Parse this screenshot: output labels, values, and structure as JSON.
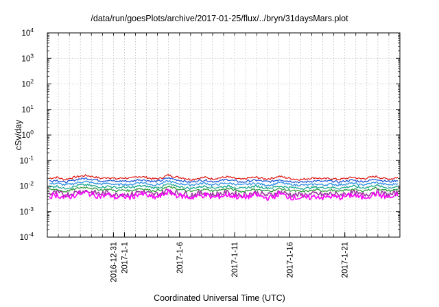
{
  "chart_data": {
    "type": "line",
    "title": "/data/run/goesPlots/archive/2017-01-25/flux/../bryn/31daysMars.plot",
    "xlabel": "Coordinated Universal Time (UTC)",
    "ylabel": "cSv/day",
    "yscale": "log",
    "ylim": [
      0.0001,
      10000
    ],
    "xlim": [
      "2016-12-25",
      "2017-01-26"
    ],
    "grid": true,
    "legend": "none",
    "x_ticks": [
      "2016-12-31",
      "2017-1-1",
      "2017-1-6",
      "2017-1-11",
      "2017-1-16",
      "2017-1-21"
    ],
    "y_ticks": [
      {
        "base": "10",
        "exp": "-4"
      },
      {
        "base": "10",
        "exp": "-3"
      },
      {
        "base": "10",
        "exp": "-2"
      },
      {
        "base": "10",
        "exp": "-1"
      },
      {
        "base": "10",
        "exp": "0"
      },
      {
        "base": "10",
        "exp": "1"
      },
      {
        "base": "10",
        "exp": "2"
      },
      {
        "base": "10",
        "exp": "3"
      },
      {
        "base": "10",
        "exp": "4"
      }
    ],
    "series": [
      {
        "color": "#e0201c",
        "values": [
          0.02,
          0.022,
          0.018,
          0.021,
          0.024,
          0.026,
          0.023,
          0.02,
          0.022,
          0.019,
          0.021,
          0.02,
          0.024,
          0.022,
          0.019,
          0.02,
          0.027,
          0.023,
          0.021,
          0.018,
          0.02,
          0.022,
          0.019,
          0.021,
          0.023,
          0.02,
          0.018,
          0.021,
          0.022,
          0.019,
          0.02,
          0.024,
          0.021,
          0.019,
          0.018,
          0.02,
          0.021,
          0.019,
          0.02,
          0.018,
          0.02,
          0.022,
          0.019,
          0.021,
          0.024,
          0.02,
          0.019,
          0.022
        ]
      },
      {
        "color": "#1f5ad6",
        "values": [
          0.016,
          0.017,
          0.014,
          0.016,
          0.019,
          0.02,
          0.018,
          0.016,
          0.017,
          0.015,
          0.016,
          0.015,
          0.018,
          0.017,
          0.015,
          0.016,
          0.021,
          0.018,
          0.016,
          0.014,
          0.016,
          0.017,
          0.015,
          0.016,
          0.018,
          0.016,
          0.014,
          0.016,
          0.017,
          0.015,
          0.015,
          0.018,
          0.016,
          0.015,
          0.014,
          0.015,
          0.016,
          0.015,
          0.016,
          0.014,
          0.016,
          0.017,
          0.015,
          0.016,
          0.019,
          0.016,
          0.015,
          0.017
        ]
      },
      {
        "color": "#2d8fe6",
        "values": [
          0.012,
          0.013,
          0.011,
          0.012,
          0.014,
          0.015,
          0.013,
          0.012,
          0.013,
          0.011,
          0.012,
          0.011,
          0.014,
          0.013,
          0.011,
          0.012,
          0.016,
          0.013,
          0.012,
          0.011,
          0.012,
          0.013,
          0.011,
          0.012,
          0.013,
          0.012,
          0.011,
          0.012,
          0.013,
          0.011,
          0.011,
          0.014,
          0.012,
          0.011,
          0.011,
          0.011,
          0.012,
          0.011,
          0.012,
          0.011,
          0.012,
          0.013,
          0.011,
          0.012,
          0.014,
          0.012,
          0.011,
          0.013
        ]
      },
      {
        "color": "#19a890",
        "values": [
          0.009,
          0.01,
          0.008,
          0.009,
          0.011,
          0.011,
          0.01,
          0.009,
          0.01,
          0.0085,
          0.009,
          0.0085,
          0.01,
          0.01,
          0.0085,
          0.009,
          0.012,
          0.01,
          0.009,
          0.008,
          0.009,
          0.01,
          0.0085,
          0.009,
          0.01,
          0.009,
          0.008,
          0.009,
          0.01,
          0.0085,
          0.0085,
          0.01,
          0.009,
          0.0085,
          0.008,
          0.0085,
          0.009,
          0.0085,
          0.009,
          0.008,
          0.009,
          0.01,
          0.0085,
          0.009,
          0.011,
          0.009,
          0.0085,
          0.01
        ]
      },
      {
        "color": "#2f9a3a",
        "values": [
          0.007,
          0.0075,
          0.006,
          0.007,
          0.0085,
          0.009,
          0.008,
          0.007,
          0.0075,
          0.0065,
          0.007,
          0.0065,
          0.008,
          0.0075,
          0.0065,
          0.007,
          0.0095,
          0.008,
          0.007,
          0.006,
          0.007,
          0.0075,
          0.0065,
          0.007,
          0.008,
          0.007,
          0.006,
          0.007,
          0.0075,
          0.0065,
          0.0065,
          0.008,
          0.007,
          0.0065,
          0.006,
          0.0065,
          0.007,
          0.0065,
          0.007,
          0.006,
          0.007,
          0.0075,
          0.0065,
          0.007,
          0.0085,
          0.007,
          0.0065,
          0.0075
        ]
      },
      {
        "color": "#9a3aa0",
        "values": [
          0.005,
          0.0055,
          0.0045,
          0.005,
          0.006,
          0.0065,
          0.0055,
          0.005,
          0.0055,
          0.0045,
          0.005,
          0.0045,
          0.006,
          0.0055,
          0.0045,
          0.005,
          0.007,
          0.0055,
          0.005,
          0.0045,
          0.005,
          0.0055,
          0.0045,
          0.005,
          0.0055,
          0.005,
          0.0045,
          0.005,
          0.0055,
          0.0045,
          0.0045,
          0.006,
          0.005,
          0.0045,
          0.0045,
          0.0045,
          0.005,
          0.0045,
          0.005,
          0.0045,
          0.005,
          0.0055,
          0.0045,
          0.005,
          0.006,
          0.005,
          0.0045,
          0.0055
        ]
      },
      {
        "color": "#ff00ff",
        "values": [
          0.004,
          0.0045,
          0.0035,
          0.004,
          0.005,
          0.0055,
          0.0045,
          0.004,
          0.0045,
          0.0035,
          0.004,
          0.0035,
          0.005,
          0.0045,
          0.0035,
          0.004,
          0.006,
          0.0045,
          0.004,
          0.0035,
          0.004,
          0.0045,
          0.0035,
          0.004,
          0.0045,
          0.004,
          0.0035,
          0.004,
          0.0045,
          0.0035,
          0.0035,
          0.005,
          0.004,
          0.0035,
          0.0035,
          0.0035,
          0.004,
          0.0035,
          0.004,
          0.0035,
          0.004,
          0.0045,
          0.0035,
          0.004,
          0.005,
          0.004,
          0.0035,
          0.0045
        ]
      }
    ]
  }
}
